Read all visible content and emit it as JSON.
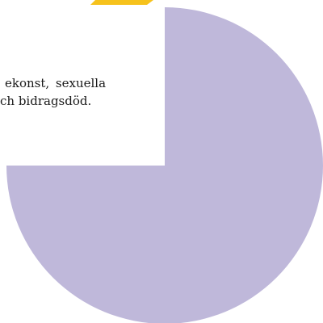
{
  "excerpt": {
    "line1": "ekonst, sexuella",
    "line2": "ch bidragsdöd."
  },
  "colors": {
    "pie_fill": "#bfb8da",
    "banner_fill": "#f6c21c",
    "background": "#ffffff",
    "text": "#1a1a1a"
  },
  "icons": {
    "top_banner": "yellow-ribbon-shape",
    "pie": "three-quarter-pie-shape"
  }
}
